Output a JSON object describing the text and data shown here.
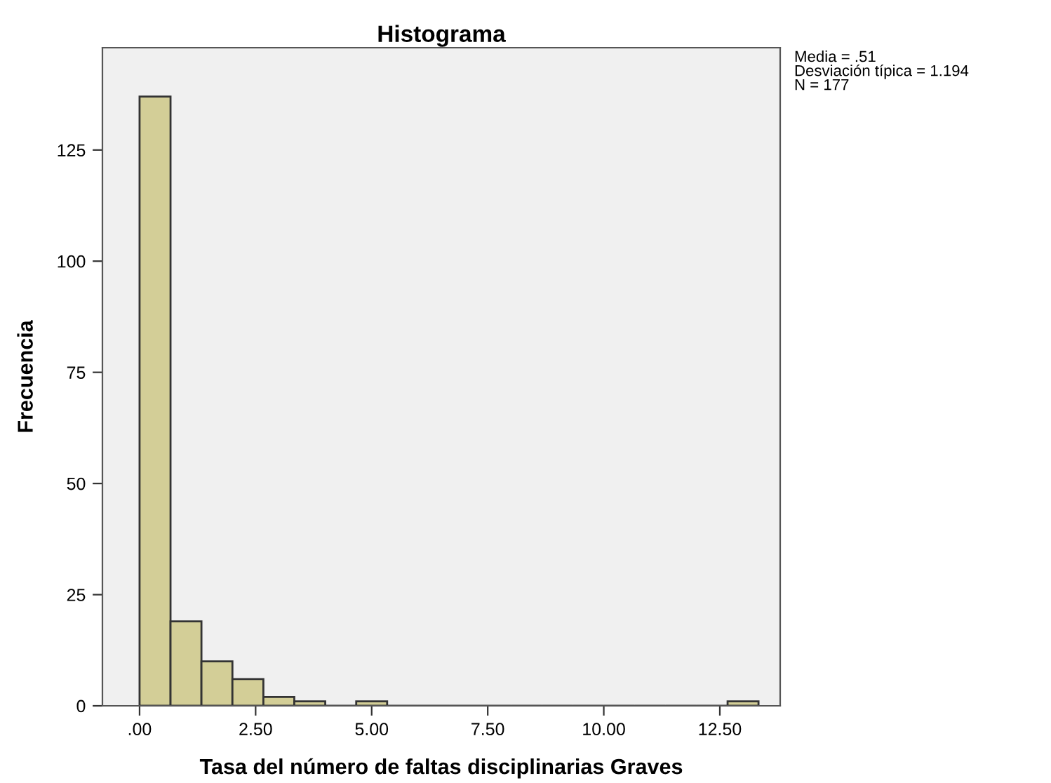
{
  "chart_data": {
    "type": "histogram",
    "title": "Histograma",
    "xlabel": "Tasa del número de faltas disciplinarias Graves",
    "ylabel": "Frecuencia",
    "bins": [
      0,
      0.667,
      1.333,
      2,
      2.667,
      3.333,
      4,
      4.667,
      5.333,
      6,
      6.667,
      7.333,
      8,
      8.667,
      9.333,
      10,
      10.667,
      11.333,
      12,
      12.667,
      13.333
    ],
    "values": [
      137,
      19,
      10,
      6,
      2,
      1,
      0,
      1,
      0,
      0,
      0,
      0,
      0,
      0,
      0,
      0,
      0,
      0,
      0,
      1
    ],
    "color": "#d3ce97",
    "xlim": [
      -0.8,
      13.8
    ],
    "ylim": [
      0,
      148
    ],
    "xticks": [
      {
        "value": 0,
        "label": ".00"
      },
      {
        "value": 2.5,
        "label": "2.50"
      },
      {
        "value": 5,
        "label": "5.00"
      },
      {
        "value": 7.5,
        "label": "7.50"
      },
      {
        "value": 10,
        "label": "10.00"
      },
      {
        "value": 12.5,
        "label": "12.50"
      }
    ],
    "yticks": [
      0,
      25,
      50,
      75,
      100,
      125
    ],
    "grid": false,
    "legend": false,
    "annotations": [
      "Media = .51\nDesviación típica = 1.194\nN = 177"
    ]
  }
}
